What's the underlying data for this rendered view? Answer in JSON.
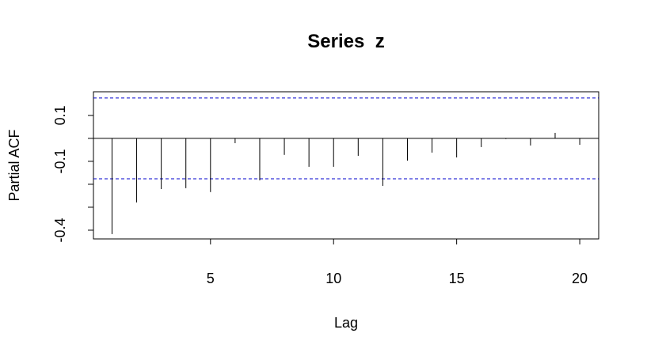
{
  "chart_data": {
    "type": "pacf",
    "title": "Series  z",
    "x_label": "Lag",
    "y_label": "Partial ACF",
    "x": [
      1,
      2,
      3,
      4,
      5,
      6,
      7,
      8,
      9,
      10,
      11,
      12,
      13,
      14,
      15,
      16,
      17,
      18,
      19,
      20
    ],
    "values": [
      -0.417,
      -0.279,
      -0.221,
      -0.217,
      -0.234,
      -0.021,
      -0.183,
      -0.072,
      -0.124,
      -0.124,
      -0.076,
      -0.207,
      -0.097,
      -0.062,
      -0.083,
      -0.038,
      -0.003,
      -0.031,
      0.024,
      -0.028
    ],
    "color": "#000000",
    "confidence_bounds": [
      0.176,
      -0.176
    ],
    "confidence_color": "#0000cd",
    "xlim": [
      0.245,
      20.77
    ],
    "xticks": [
      5,
      10,
      15,
      20
    ],
    "ylim": [
      -0.438,
      0.203
    ],
    "yticks": [
      0.1,
      -0.1,
      -0.4
    ],
    "y_unlabeled_ticks": [
      0,
      -0.2,
      -0.3
    ]
  }
}
